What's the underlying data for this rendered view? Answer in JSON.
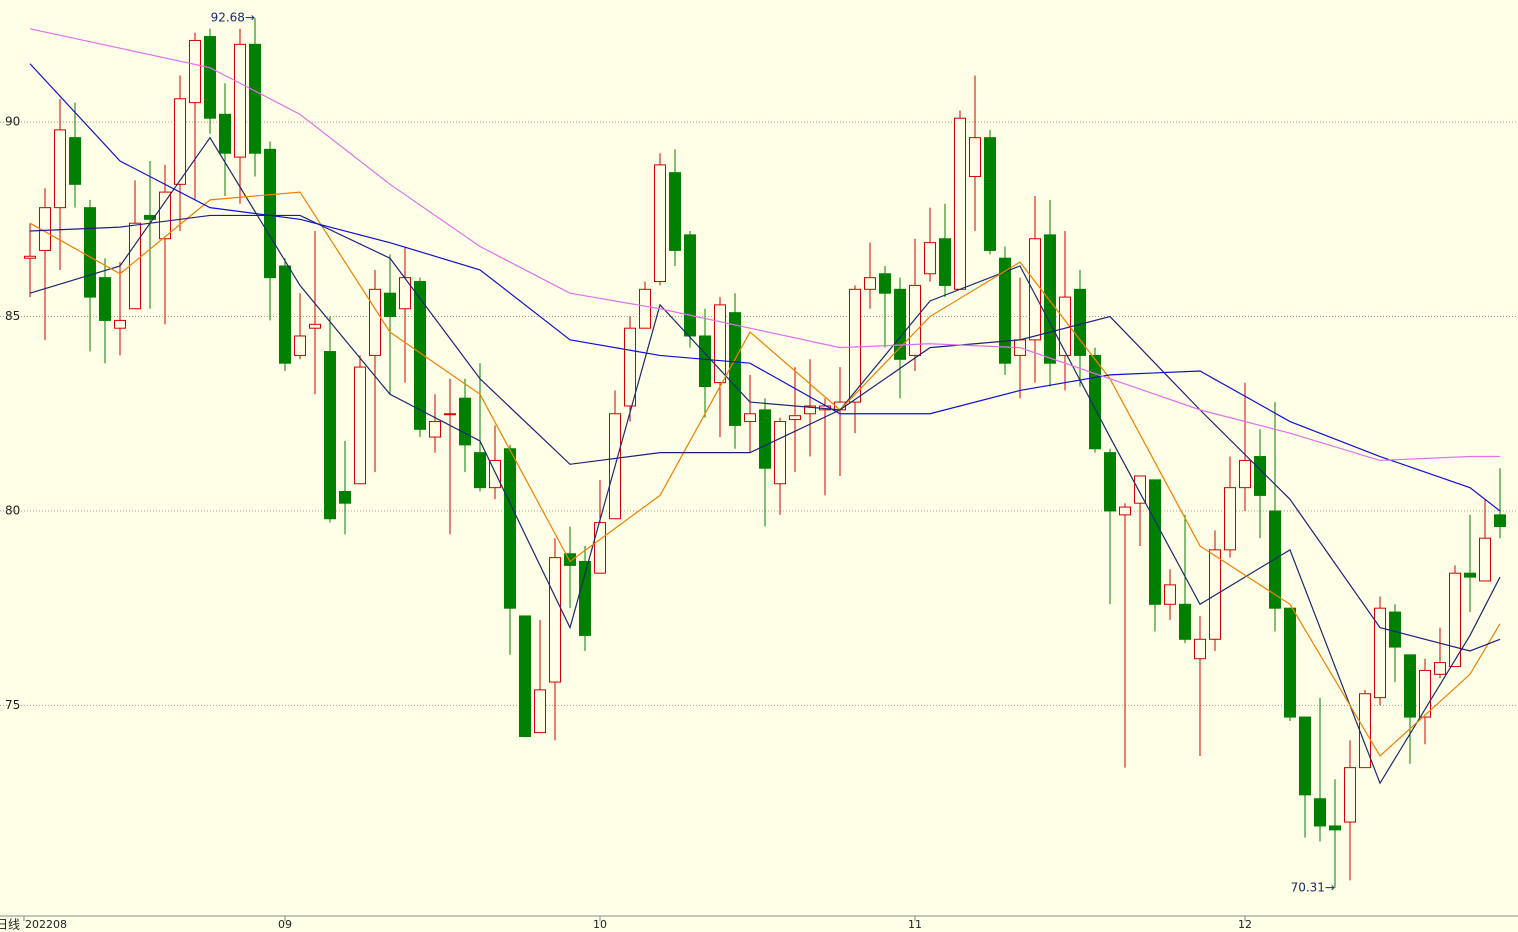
{
  "chart_data": {
    "type": "candlestick",
    "period_label": "日线",
    "high_label": "92.68→",
    "low_label": "70.31→",
    "up_color": "#d40000",
    "down_color": "#008000",
    "ylim": [
      69.61,
      93.14
    ],
    "yticks": [
      75,
      80,
      85,
      90
    ],
    "grid": true,
    "categories": [
      "202208",
      null,
      null,
      null,
      null,
      null,
      null,
      null,
      null,
      null,
      null,
      null,
      null,
      null,
      null,
      null,
      null,
      "09",
      null,
      null,
      null,
      null,
      null,
      null,
      null,
      null,
      null,
      null,
      null,
      null,
      null,
      null,
      null,
      null,
      null,
      null,
      null,
      null,
      "10",
      null,
      null,
      null,
      null,
      null,
      null,
      null,
      null,
      null,
      null,
      null,
      null,
      null,
      null,
      null,
      null,
      null,
      null,
      null,
      null,
      "11",
      null,
      null,
      null,
      null,
      null,
      null,
      null,
      null,
      null,
      null,
      null,
      null,
      null,
      null,
      null,
      null,
      null,
      null,
      null,
      null,
      null,
      "12",
      null,
      null,
      null,
      null,
      null,
      null,
      null,
      null,
      null,
      null,
      null,
      null,
      null,
      null,
      null,
      null,
      null
    ],
    "open": [
      86.5,
      86.7,
      87.8,
      89.6,
      87.8,
      86.0,
      84.7,
      85.2,
      87.6,
      87.0,
      88.4,
      90.5,
      92.2,
      90.2,
      89.1,
      92.0,
      89.3,
      86.3,
      84.0,
      84.7,
      84.1,
      80.5,
      80.7,
      84.0,
      85.6,
      85.2,
      85.9,
      81.9,
      82.5,
      82.9,
      81.5,
      80.6,
      81.6,
      77.3,
      74.3,
      75.6,
      78.9,
      78.7,
      78.4,
      79.8,
      82.7,
      84.7,
      85.9,
      88.7,
      87.1,
      84.5,
      83.3,
      85.1,
      82.3,
      82.6,
      80.7,
      82.35,
      82.5,
      82.6,
      82.6,
      82.8,
      85.7,
      86.1,
      85.7,
      84.0,
      86.1,
      87.0,
      85.7,
      88.6,
      89.6,
      86.5,
      84.0,
      84.4,
      87.1,
      84.0,
      85.7,
      84.0,
      81.5,
      79.9,
      80.2,
      80.8,
      77.6,
      77.6,
      76.2,
      76.7,
      79.0,
      80.6,
      81.4,
      80.0,
      77.5,
      74.7,
      72.6,
      71.9,
      72.0,
      73.4,
      75.2,
      77.4,
      76.3,
      74.7,
      75.8,
      76.0,
      78.4,
      78.2,
      79.9
    ],
    "high": [
      87.4,
      88.3,
      90.6,
      90.5,
      88.0,
      86.5,
      86.4,
      88.5,
      89.0,
      88.9,
      91.2,
      92.3,
      92.4,
      91.0,
      92.4,
      92.68,
      89.5,
      86.5,
      85.6,
      87.2,
      85.0,
      81.8,
      84.0,
      86.2,
      86.6,
      86.8,
      86.0,
      83.0,
      83.4,
      83.4,
      83.8,
      82.2,
      81.7,
      77.3,
      77.2,
      79.3,
      79.6,
      79.1,
      80.8,
      83.1,
      85.0,
      85.9,
      89.2,
      89.3,
      87.2,
      85.2,
      85.5,
      85.6,
      83.5,
      82.9,
      82.4,
      83.7,
      83.9,
      82.9,
      83.7,
      85.8,
      86.9,
      86.3,
      86.0,
      87.0,
      87.8,
      87.9,
      90.3,
      91.2,
      89.8,
      86.8,
      86.0,
      88.1,
      88.0,
      87.2,
      86.2,
      84.2,
      81.6,
      80.2,
      80.9,
      80.8,
      78.5,
      79.9,
      77.3,
      79.5,
      81.4,
      83.3,
      82.1,
      82.8,
      77.5,
      74.7,
      75.2,
      73.1,
      74.1,
      75.4,
      77.8,
      77.6,
      76.3,
      76.2,
      77.0,
      78.6,
      79.9,
      80.3,
      81.1
    ],
    "low": [
      85.5,
      84.4,
      86.2,
      87.8,
      84.1,
      83.8,
      84.0,
      85.2,
      85.2,
      84.8,
      87.2,
      88.0,
      89.7,
      88.1,
      87.9,
      88.6,
      84.9,
      83.6,
      83.9,
      83.0,
      79.7,
      79.4,
      80.7,
      81.0,
      83.0,
      83.3,
      81.9,
      81.5,
      79.4,
      81.0,
      80.5,
      80.3,
      76.3,
      74.2,
      74.3,
      74.1,
      77.5,
      76.4,
      78.4,
      79.8,
      82.3,
      84.7,
      85.8,
      86.3,
      84.2,
      82.4,
      81.9,
      81.6,
      81.5,
      79.6,
      79.9,
      81.0,
      81.4,
      80.4,
      80.9,
      82.0,
      85.2,
      84.2,
      82.9,
      83.6,
      85.9,
      85.5,
      85.7,
      87.2,
      86.6,
      83.5,
      82.9,
      83.3,
      83.2,
      83.1,
      83.2,
      81.5,
      77.6,
      73.4,
      79.1,
      76.9,
      77.2,
      76.6,
      73.7,
      76.4,
      78.8,
      80.0,
      79.3,
      76.9,
      74.6,
      71.6,
      71.5,
      70.31,
      70.5,
      73.4,
      75.0,
      75.6,
      73.5,
      74.0,
      75.7,
      76.0,
      77.4,
      78.2,
      79.3
    ],
    "close": [
      86.55,
      87.8,
      89.8,
      88.4,
      85.5,
      84.9,
      84.9,
      87.4,
      87.5,
      88.2,
      90.6,
      92.1,
      90.1,
      89.2,
      92.0,
      89.2,
      86.0,
      83.8,
      84.5,
      84.8,
      79.8,
      80.2,
      83.7,
      85.7,
      85.0,
      86.0,
      82.1,
      82.3,
      82.5,
      81.7,
      80.6,
      81.3,
      77.5,
      74.2,
      75.4,
      78.8,
      78.6,
      76.8,
      79.7,
      82.5,
      84.7,
      85.7,
      88.9,
      86.7,
      84.5,
      83.2,
      85.3,
      82.2,
      82.5,
      81.1,
      82.3,
      82.45,
      82.7,
      82.7,
      82.8,
      85.7,
      86.0,
      85.6,
      83.9,
      85.8,
      86.9,
      85.8,
      90.1,
      89.6,
      86.7,
      83.8,
      84.4,
      87.0,
      83.8,
      85.5,
      84.0,
      81.6,
      80.0,
      80.1,
      80.9,
      77.6,
      78.1,
      76.7,
      76.7,
      79.0,
      80.6,
      81.3,
      80.4,
      77.5,
      74.7,
      72.7,
      71.9,
      71.8,
      73.4,
      75.3,
      77.5,
      76.5,
      74.7,
      75.9,
      76.1,
      78.4,
      78.3,
      79.3,
      79.6
    ],
    "ma_lines": [
      {
        "color": "#1a2a6c",
        "x": [
          0,
          6,
          12,
          18,
          24,
          30,
          36,
          42,
          48,
          54,
          60,
          66,
          72,
          78,
          84,
          90,
          96,
          98
        ],
        "values": [
          85.6,
          86.3,
          89.6,
          85.8,
          83.0,
          81.8,
          77.0,
          85.3,
          82.8,
          82.6,
          85.4,
          86.3,
          81.9,
          77.6,
          79.0,
          73.0,
          76.8,
          78.3
        ]
      },
      {
        "color": "#f08000",
        "x": [
          0,
          6,
          12,
          18,
          24,
          30,
          36,
          42,
          48,
          54,
          60,
          66,
          72,
          78,
          84,
          90,
          96,
          98
        ],
        "values": [
          87.4,
          86.1,
          88.0,
          88.2,
          84.6,
          83.0,
          78.7,
          80.4,
          84.6,
          82.6,
          85.0,
          86.4,
          83.4,
          79.1,
          77.6,
          73.7,
          75.8,
          77.1
        ]
      },
      {
        "color": "#20207a",
        "x": [
          0,
          6,
          12,
          18,
          24,
          30,
          36,
          42,
          48,
          54,
          60,
          66,
          72,
          78,
          84,
          90,
          96,
          98
        ],
        "values": [
          87.2,
          87.3,
          87.6,
          87.6,
          86.5,
          83.4,
          81.2,
          81.5,
          81.5,
          82.6,
          84.2,
          84.4,
          85.0,
          82.6,
          80.3,
          77.0,
          76.4,
          76.7
        ]
      },
      {
        "color": "#1010d0",
        "x": [
          0,
          6,
          12,
          18,
          24,
          30,
          36,
          42,
          48,
          54,
          60,
          66,
          72,
          78,
          84,
          90,
          96,
          98
        ],
        "values": [
          91.5,
          89.0,
          87.8,
          87.5,
          86.9,
          86.2,
          84.4,
          84.0,
          83.8,
          82.5,
          82.5,
          83.1,
          83.5,
          83.6,
          82.3,
          81.4,
          80.6,
          80.0
        ]
      },
      {
        "color": "#e070e8",
        "x": [
          0,
          6,
          12,
          18,
          24,
          30,
          36,
          42,
          48,
          54,
          60,
          66,
          72,
          78,
          84,
          90,
          96,
          98
        ],
        "values": [
          92.4,
          91.9,
          91.4,
          90.2,
          88.4,
          86.8,
          85.6,
          85.2,
          84.7,
          84.2,
          84.3,
          84.2,
          83.4,
          82.6,
          82.0,
          81.3,
          81.4,
          81.4
        ]
      }
    ]
  }
}
